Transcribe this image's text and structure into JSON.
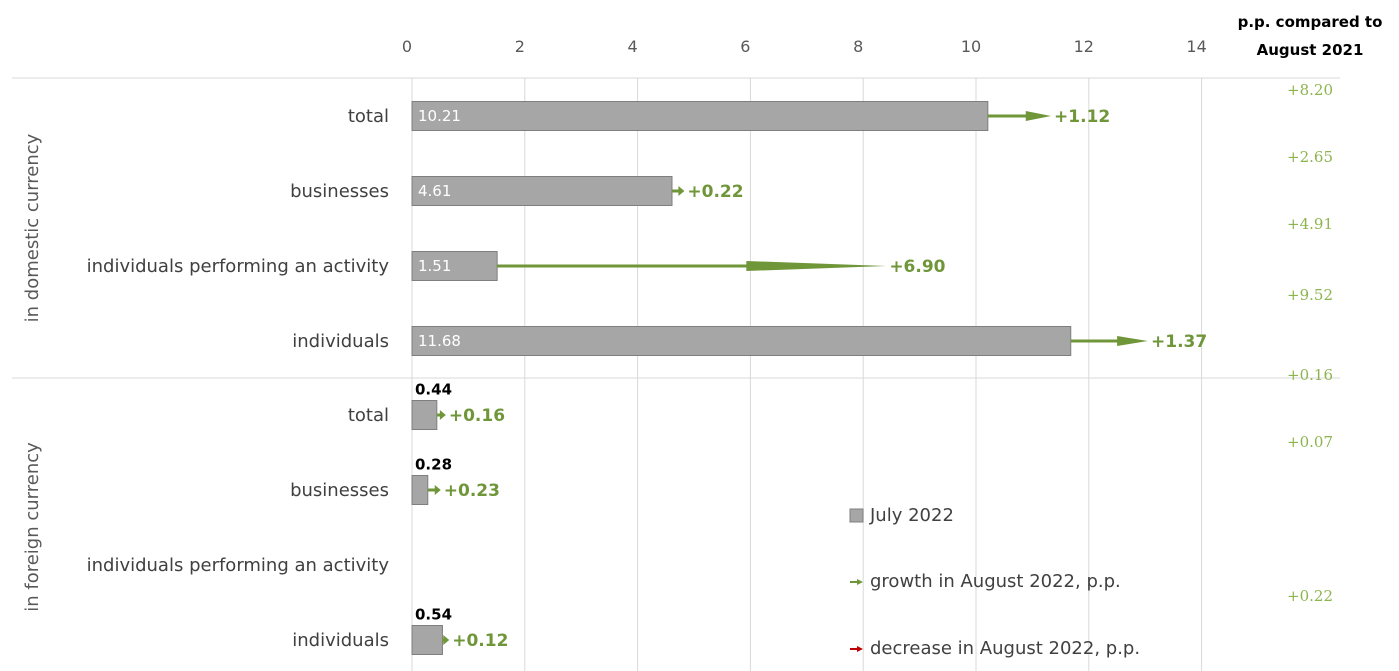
{
  "chart_data": {
    "type": "bar",
    "orientation": "horizontal",
    "xlim": [
      0,
      14
    ],
    "x_ticks": [
      "0",
      "2",
      "4",
      "6",
      "8",
      "10",
      "12",
      "14"
    ],
    "grid": true,
    "groups": [
      {
        "label": "in domestic currency",
        "categories": [
          {
            "label": "total",
            "value": 10.21,
            "value_label": "10.21",
            "change": 1.12,
            "change_label": "+1.12"
          },
          {
            "label": "businesses",
            "value": 4.61,
            "value_label": "4.61",
            "change": 0.22,
            "change_label": "+0.22"
          },
          {
            "label": "individuals performing an activity",
            "value": 1.51,
            "value_label": "1.51",
            "change": 6.9,
            "change_label": "+6.90"
          },
          {
            "label": "individuals",
            "value": 11.68,
            "value_label": "11.68",
            "change": 1.37,
            "change_label": "+1.37"
          }
        ]
      },
      {
        "label": "in foreign currency",
        "categories": [
          {
            "label": "total",
            "value": 0.44,
            "value_label": "0.44",
            "change": 0.16,
            "change_label": "+0.16"
          },
          {
            "label": "businesses",
            "value": 0.28,
            "value_label": "0.28",
            "change": 0.23,
            "change_label": "+0.23"
          },
          {
            "label": "individuals performing an activity",
            "value": null,
            "value_label": "",
            "change": null,
            "change_label": ""
          },
          {
            "label": "individuals",
            "value": 0.54,
            "value_label": "0.54",
            "change": 0.12,
            "change_label": "+0.12"
          }
        ]
      }
    ],
    "side_header": [
      "p.p. compared to",
      "August  2021"
    ],
    "side_values": [
      "+8.20",
      "+2.65",
      "+4.91",
      "+9.52",
      "+0.16",
      "+0.07",
      "+0.22"
    ],
    "legend": {
      "placement": "bottom-right",
      "items": [
        {
          "label": "July 2022",
          "kind": "bar",
          "color": "#a6a6a6"
        },
        {
          "label": "growth in August 2022, p.p.",
          "kind": "arrow",
          "color": "#70963a"
        },
        {
          "label": "decrease in August  2022, p.p.",
          "kind": "arrow",
          "color": "#c00000"
        }
      ]
    },
    "colors": {
      "bar": "#a6a6a6",
      "bar_border": "#7f7f7f",
      "growth": "#70963a",
      "decrease": "#c00000",
      "side": "#8db44f"
    }
  }
}
